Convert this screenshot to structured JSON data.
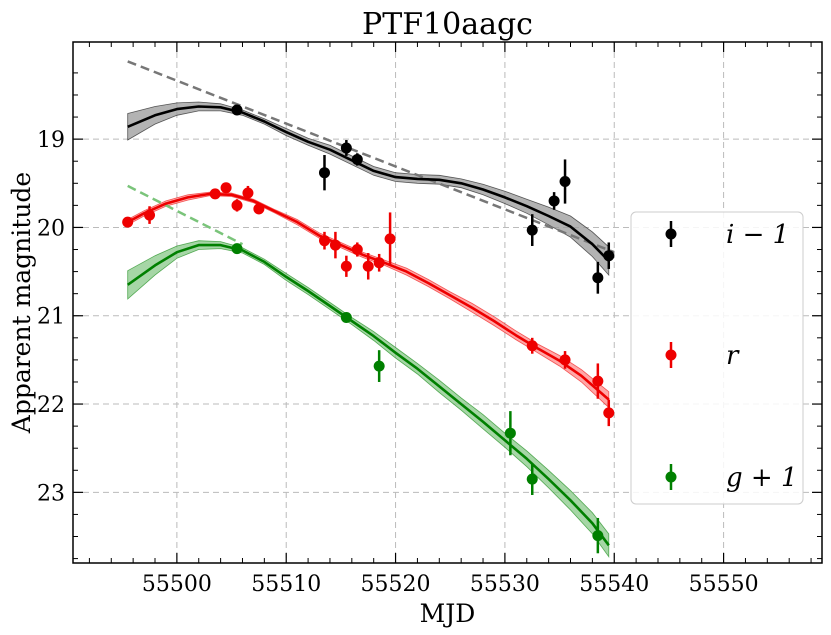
{
  "chart_data": {
    "type": "scatter",
    "title": "PTF10aagc",
    "xlabel": "MJD",
    "ylabel": "Apparent magnitude",
    "xlim": [
      55490.5,
      55559
    ],
    "ylim": [
      23.8,
      17.9
    ],
    "y_inverted": true,
    "xticks": [
      55500,
      55510,
      55520,
      55530,
      55540,
      55550
    ],
    "yticks": [
      19,
      20,
      21,
      22,
      23
    ],
    "grid": true,
    "legend_position": "right",
    "series": [
      {
        "name": "i − 1",
        "color": "#000000",
        "band_color": "#999999",
        "points": [
          {
            "x": 55505.5,
            "y": 18.67,
            "err": 0.04
          },
          {
            "x": 55513.5,
            "y": 19.38,
            "err": 0.2
          },
          {
            "x": 55515.5,
            "y": 19.1,
            "err": 0.09
          },
          {
            "x": 55516.5,
            "y": 19.23,
            "err": 0.07
          },
          {
            "x": 55532.5,
            "y": 20.03,
            "err": 0.18
          },
          {
            "x": 55534.5,
            "y": 19.7,
            "err": 0.1
          },
          {
            "x": 55535.5,
            "y": 19.48,
            "err": 0.25
          },
          {
            "x": 55538.5,
            "y": 20.57,
            "err": 0.18
          },
          {
            "x": 55539.5,
            "y": 20.32,
            "err": 0.15
          }
        ],
        "fit_x": [
          55495.5,
          55498,
          55500,
          55502,
          55504,
          55506,
          55508,
          55510,
          55512,
          55514,
          55516,
          55518,
          55520,
          55522,
          55524,
          55526,
          55528,
          55530,
          55532,
          55534,
          55536,
          55538,
          55539.5
        ],
        "fit_y": [
          18.86,
          18.73,
          18.66,
          18.63,
          18.64,
          18.7,
          18.8,
          18.92,
          19.03,
          19.12,
          19.24,
          19.36,
          19.43,
          19.45,
          19.46,
          19.5,
          19.57,
          19.66,
          19.76,
          19.87,
          19.99,
          20.19,
          20.38
        ],
        "fit_err": [
          0.15,
          0.1,
          0.07,
          0.05,
          0.04,
          0.03,
          0.03,
          0.04,
          0.04,
          0.05,
          0.05,
          0.05,
          0.05,
          0.05,
          0.05,
          0.05,
          0.06,
          0.07,
          0.08,
          0.1,
          0.12,
          0.14,
          0.16
        ],
        "dash_x": [
          55495.5,
          55540
        ],
        "dash_y": [
          18.12,
          20.28
        ],
        "dash_color": "#777777"
      },
      {
        "name": "r",
        "color": "#ee0000",
        "band_color": "#ff8a8a",
        "points": [
          {
            "x": 55495.5,
            "y": 19.94,
            "err": 0.04
          },
          {
            "x": 55497.5,
            "y": 19.86,
            "err": 0.1
          },
          {
            "x": 55503.5,
            "y": 19.62,
            "err": 0.05
          },
          {
            "x": 55504.5,
            "y": 19.55,
            "err": 0.05
          },
          {
            "x": 55505.5,
            "y": 19.75,
            "err": 0.07
          },
          {
            "x": 55506.5,
            "y": 19.61,
            "err": 0.08
          },
          {
            "x": 55507.5,
            "y": 19.79,
            "err": 0.06
          },
          {
            "x": 55513.5,
            "y": 20.15,
            "err": 0.1
          },
          {
            "x": 55514.5,
            "y": 20.2,
            "err": 0.15
          },
          {
            "x": 55515.5,
            "y": 20.44,
            "err": 0.12
          },
          {
            "x": 55516.5,
            "y": 20.25,
            "err": 0.08
          },
          {
            "x": 55517.5,
            "y": 20.44,
            "err": 0.15
          },
          {
            "x": 55518.5,
            "y": 20.4,
            "err": 0.1
          },
          {
            "x": 55519.5,
            "y": 20.13,
            "err": 0.3
          },
          {
            "x": 55532.5,
            "y": 21.34,
            "err": 0.09
          },
          {
            "x": 55535.5,
            "y": 21.5,
            "err": 0.1
          },
          {
            "x": 55538.5,
            "y": 21.74,
            "err": 0.2
          },
          {
            "x": 55539.5,
            "y": 22.1,
            "err": 0.15
          }
        ],
        "fit_x": [
          55495.5,
          55497,
          55499,
          55501,
          55503,
          55505,
          55507,
          55509,
          55511,
          55513,
          55515,
          55517,
          55519,
          55521,
          55523,
          55525,
          55527,
          55529,
          55531,
          55533,
          55535,
          55537,
          55539.5
        ],
        "fit_y": [
          19.94,
          19.84,
          19.73,
          19.66,
          19.62,
          19.63,
          19.7,
          19.82,
          19.94,
          20.09,
          20.2,
          20.31,
          20.4,
          20.5,
          20.63,
          20.77,
          20.91,
          21.06,
          21.22,
          21.37,
          21.51,
          21.68,
          21.95
        ],
        "fit_err": [
          0.03,
          0.03,
          0.03,
          0.03,
          0.02,
          0.02,
          0.02,
          0.02,
          0.03,
          0.03,
          0.03,
          0.03,
          0.03,
          0.04,
          0.04,
          0.04,
          0.05,
          0.05,
          0.05,
          0.05,
          0.06,
          0.07,
          0.09
        ]
      },
      {
        "name": "g + 1",
        "color": "#008000",
        "band_color": "#88c888",
        "points": [
          {
            "x": 55505.5,
            "y": 20.24,
            "err": 0.03
          },
          {
            "x": 55515.5,
            "y": 21.02,
            "err": 0.04
          },
          {
            "x": 55518.5,
            "y": 21.57,
            "err": 0.18
          },
          {
            "x": 55530.5,
            "y": 22.33,
            "err": 0.25
          },
          {
            "x": 55532.5,
            "y": 22.85,
            "err": 0.18
          },
          {
            "x": 55538.5,
            "y": 23.49,
            "err": 0.2
          }
        ],
        "fit_x": [
          55495.5,
          55498,
          55500,
          55502,
          55504,
          55506,
          55508,
          55510,
          55512,
          55514,
          55516,
          55518,
          55520,
          55522,
          55524,
          55526,
          55528,
          55530,
          55532,
          55534,
          55536,
          55538,
          55539.5
        ],
        "fit_y": [
          20.65,
          20.43,
          20.28,
          20.2,
          20.2,
          20.26,
          20.39,
          20.56,
          20.72,
          20.89,
          21.06,
          21.23,
          21.42,
          21.6,
          21.8,
          22.0,
          22.2,
          22.41,
          22.62,
          22.85,
          23.09,
          23.35,
          23.6
        ],
        "fit_err": [
          0.16,
          0.11,
          0.07,
          0.05,
          0.04,
          0.03,
          0.03,
          0.04,
          0.04,
          0.04,
          0.04,
          0.05,
          0.06,
          0.06,
          0.07,
          0.07,
          0.08,
          0.08,
          0.09,
          0.1,
          0.11,
          0.12,
          0.13
        ],
        "dash_x": [
          55495.5,
          55506
        ],
        "dash_y": [
          19.53,
          20.19
        ],
        "dash_color": "#7ac47a"
      }
    ]
  }
}
